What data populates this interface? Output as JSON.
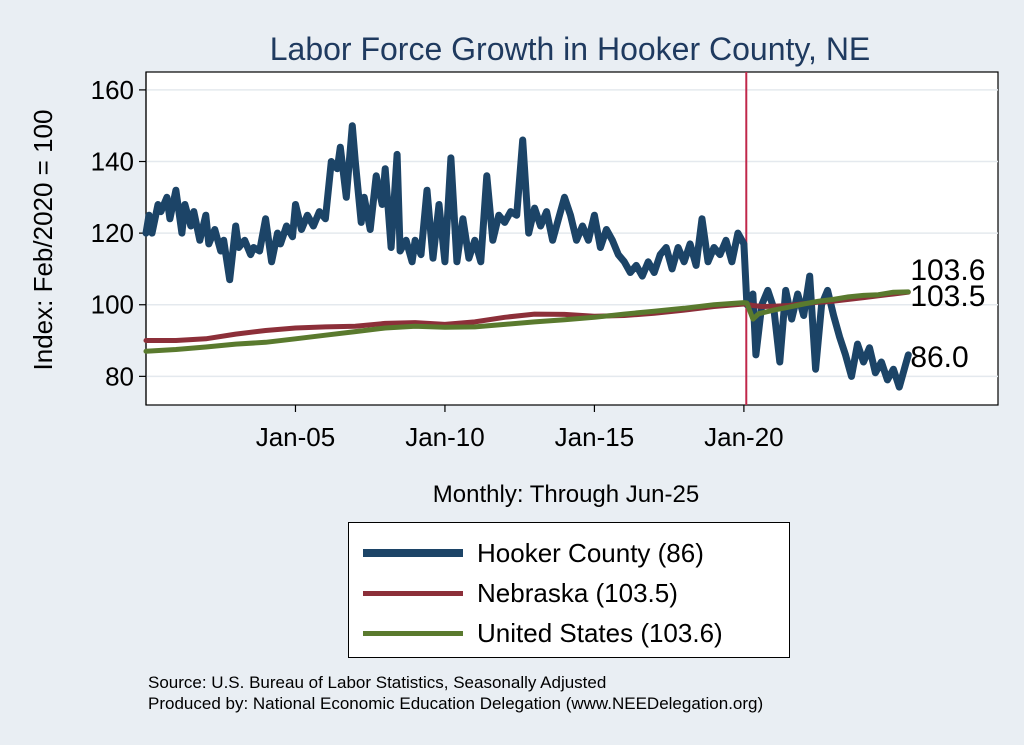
{
  "chart_data": {
    "type": "line",
    "title": "Labor Force Growth in Hooker  County, NE",
    "ylabel": "Index: Feb/2020 = 100",
    "xlabel": "Monthly: Through Jun-25",
    "ylim": [
      72,
      165
    ],
    "yticks": [
      80,
      100,
      120,
      140,
      160
    ],
    "xlim": [
      2000.0,
      2028.5
    ],
    "xticks": [
      {
        "value": 2005.0,
        "label": "Jan-05"
      },
      {
        "value": 2010.0,
        "label": "Jan-10"
      },
      {
        "value": 2015.0,
        "label": "Jan-15"
      },
      {
        "value": 2020.0,
        "label": "Jan-20"
      }
    ],
    "reference_line": {
      "x": 2020.08,
      "color": "#c0284a"
    },
    "series": [
      {
        "name": "Hooker  County",
        "legend": "Hooker  County (86)",
        "end_label": "86.0",
        "color": "#1c4467",
        "width": 7,
        "x": [
          2000.0,
          2000.1,
          2000.2,
          2000.4,
          2000.5,
          2000.7,
          2000.8,
          2001.0,
          2001.2,
          2001.3,
          2001.5,
          2001.6,
          2001.8,
          2002.0,
          2002.1,
          2002.3,
          2002.5,
          2002.6,
          2002.8,
          2003.0,
          2003.1,
          2003.3,
          2003.5,
          2003.6,
          2003.8,
          2004.0,
          2004.2,
          2004.4,
          2004.5,
          2004.7,
          2004.9,
          2005.0,
          2005.2,
          2005.4,
          2005.6,
          2005.8,
          2006.0,
          2006.2,
          2006.4,
          2006.5,
          2006.7,
          2006.9,
          2007.0,
          2007.2,
          2007.3,
          2007.5,
          2007.7,
          2007.9,
          2008.0,
          2008.2,
          2008.4,
          2008.5,
          2008.7,
          2008.9,
          2009.0,
          2009.2,
          2009.4,
          2009.6,
          2009.8,
          2010.0,
          2010.2,
          2010.4,
          2010.6,
          2010.8,
          2011.0,
          2011.2,
          2011.4,
          2011.6,
          2011.8,
          2012.0,
          2012.2,
          2012.4,
          2012.6,
          2012.8,
          2013.0,
          2013.2,
          2013.4,
          2013.6,
          2013.8,
          2014.0,
          2014.2,
          2014.4,
          2014.6,
          2014.8,
          2015.0,
          2015.2,
          2015.4,
          2015.6,
          2015.8,
          2016.0,
          2016.2,
          2016.4,
          2016.6,
          2016.8,
          2017.0,
          2017.2,
          2017.4,
          2017.6,
          2017.8,
          2018.0,
          2018.2,
          2018.4,
          2018.6,
          2018.8,
          2019.0,
          2019.2,
          2019.4,
          2019.6,
          2019.8,
          2020.0,
          2020.1,
          2020.3,
          2020.4,
          2020.6,
          2020.8,
          2021.0,
          2021.2,
          2021.4,
          2021.6,
          2021.8,
          2022.0,
          2022.2,
          2022.4,
          2022.6,
          2022.8,
          2023.0,
          2023.2,
          2023.4,
          2023.6,
          2023.8,
          2024.0,
          2024.2,
          2024.4,
          2024.6,
          2024.8,
          2025.0,
          2025.2,
          2025.4,
          2025.5
        ],
        "values": [
          120,
          125,
          120,
          128,
          126,
          130,
          124,
          132,
          120,
          128,
          122,
          126,
          118,
          125,
          117,
          121,
          115,
          118,
          107,
          122,
          116,
          118,
          114,
          116,
          115,
          124,
          112,
          120,
          117,
          122,
          119,
          128,
          121,
          125,
          122,
          126,
          124,
          140,
          138,
          144,
          130,
          150,
          140,
          123,
          130,
          121,
          136,
          128,
          138,
          116,
          142,
          115,
          118,
          112,
          118,
          114,
          132,
          113,
          128,
          112,
          141,
          112,
          124,
          113,
          118,
          112,
          136,
          118,
          125,
          123,
          126,
          125,
          146,
          120,
          127,
          122,
          126,
          118,
          124,
          130,
          125,
          118,
          122,
          118,
          125,
          116,
          121,
          118,
          114,
          112,
          109,
          111,
          108,
          112,
          109,
          114,
          116,
          110,
          116,
          112,
          117,
          111,
          124,
          112,
          116,
          114,
          118,
          112,
          120,
          117,
          100,
          103,
          86,
          100,
          104,
          99,
          84,
          104,
          96,
          103,
          97,
          108,
          82,
          100,
          104,
          97,
          91,
          86,
          80,
          89,
          84,
          88,
          81,
          84,
          79,
          82,
          77,
          83,
          86
        ]
      },
      {
        "name": "Nebraska",
        "legend": "Nebraska (103.5)",
        "end_label": "103.5",
        "color": "#8c2f39",
        "width": 5,
        "x": [
          2000.0,
          2001.0,
          2002.0,
          2003.0,
          2004.0,
          2005.0,
          2006.0,
          2007.0,
          2008.0,
          2009.0,
          2010.0,
          2011.0,
          2012.0,
          2013.0,
          2014.0,
          2015.0,
          2016.0,
          2017.0,
          2018.0,
          2019.0,
          2020.0,
          2020.3,
          2020.6,
          2021.0,
          2021.5,
          2022.0,
          2022.5,
          2023.0,
          2023.5,
          2024.0,
          2024.5,
          2025.0,
          2025.5
        ],
        "values": [
          90,
          90,
          90.5,
          91.8,
          92.8,
          93.5,
          93.8,
          94,
          94.8,
          95,
          94.5,
          95.2,
          96.5,
          97.4,
          97.3,
          96.8,
          97,
          97.6,
          98.5,
          99.5,
          100.2,
          99.8,
          99.5,
          99.6,
          99.8,
          100.3,
          100.7,
          101,
          101.5,
          102,
          102.5,
          103,
          103.5
        ]
      },
      {
        "name": "United States",
        "legend": "United States (103.6)",
        "end_label": "103.6",
        "color": "#5a7a2e",
        "width": 5,
        "x": [
          2000.0,
          2001.0,
          2002.0,
          2003.0,
          2004.0,
          2005.0,
          2006.0,
          2007.0,
          2008.0,
          2009.0,
          2010.0,
          2011.0,
          2012.0,
          2013.0,
          2014.0,
          2015.0,
          2016.0,
          2017.0,
          2018.0,
          2019.0,
          2020.0,
          2020.1,
          2020.3,
          2020.5,
          2021.0,
          2021.5,
          2022.0,
          2022.5,
          2023.0,
          2023.5,
          2024.0,
          2024.5,
          2025.0,
          2025.5
        ],
        "values": [
          87,
          87.5,
          88.2,
          89,
          89.5,
          90.5,
          91.5,
          92.5,
          93.5,
          94,
          93.7,
          93.8,
          94.5,
          95.2,
          95.8,
          96.5,
          97.4,
          98.2,
          99,
          100,
          100.6,
          100.5,
          96,
          97.5,
          98.5,
          99.3,
          100.2,
          101,
          101.5,
          102.2,
          102.6,
          102.8,
          103.5,
          103.6
        ]
      }
    ]
  },
  "source_lines": [
    "Source: U.S. Bureau of Labor Statistics, Seasonally Adjusted",
    "Produced by: National Economic Education Delegation (www.NEEDelegation.org)"
  ]
}
